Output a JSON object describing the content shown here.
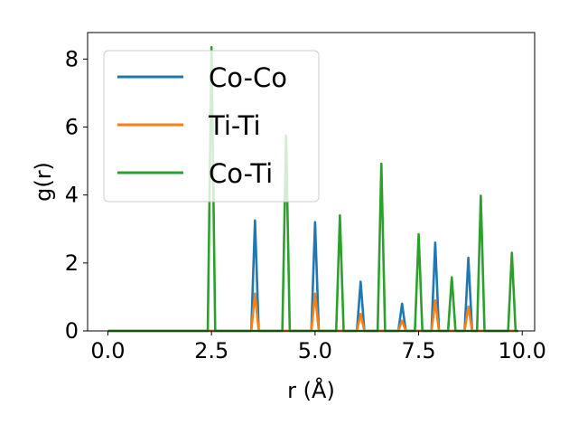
{
  "chart_data": {
    "type": "line",
    "title": "",
    "xlabel": "r (Å)",
    "ylabel": "g(r)",
    "xlim": [
      -0.49,
      10.3
    ],
    "ylim": [
      0,
      8.78
    ],
    "xticks": [
      0.0,
      2.5,
      5.0,
      7.5,
      10.0
    ],
    "xtick_labels": [
      "0.0",
      "2.5",
      "5.0",
      "7.5",
      "10.0"
    ],
    "yticks": [
      0,
      2,
      4,
      6,
      8
    ],
    "ytick_labels": [
      "0",
      "2",
      "4",
      "6",
      "8"
    ],
    "grid": false,
    "legend_position": "top-left",
    "series": [
      {
        "name": "Co-Co",
        "color": "#1f77b4",
        "peaks": [
          {
            "r": 3.55,
            "g": 3.25
          },
          {
            "r": 5.0,
            "g": 3.2
          },
          {
            "r": 6.1,
            "g": 1.45
          },
          {
            "r": 7.1,
            "g": 0.8
          },
          {
            "r": 7.9,
            "g": 2.6
          },
          {
            "r": 8.7,
            "g": 2.15
          }
        ]
      },
      {
        "name": "Ti-Ti",
        "color": "#ff7f0e",
        "peaks": [
          {
            "r": 3.55,
            "g": 1.1
          },
          {
            "r": 5.0,
            "g": 1.1
          },
          {
            "r": 6.1,
            "g": 0.5
          },
          {
            "r": 7.1,
            "g": 0.3
          },
          {
            "r": 7.9,
            "g": 0.9
          },
          {
            "r": 8.7,
            "g": 0.72
          }
        ]
      },
      {
        "name": "Co-Ti",
        "color": "#2ca02c",
        "peaks": [
          {
            "r": 2.5,
            "g": 8.35
          },
          {
            "r": 4.3,
            "g": 5.75
          },
          {
            "r": 5.6,
            "g": 3.4
          },
          {
            "r": 6.6,
            "g": 4.92
          },
          {
            "r": 7.5,
            "g": 2.85
          },
          {
            "r": 8.3,
            "g": 1.58
          },
          {
            "r": 9.0,
            "g": 3.98
          },
          {
            "r": 9.75,
            "g": 2.3
          }
        ]
      }
    ]
  }
}
